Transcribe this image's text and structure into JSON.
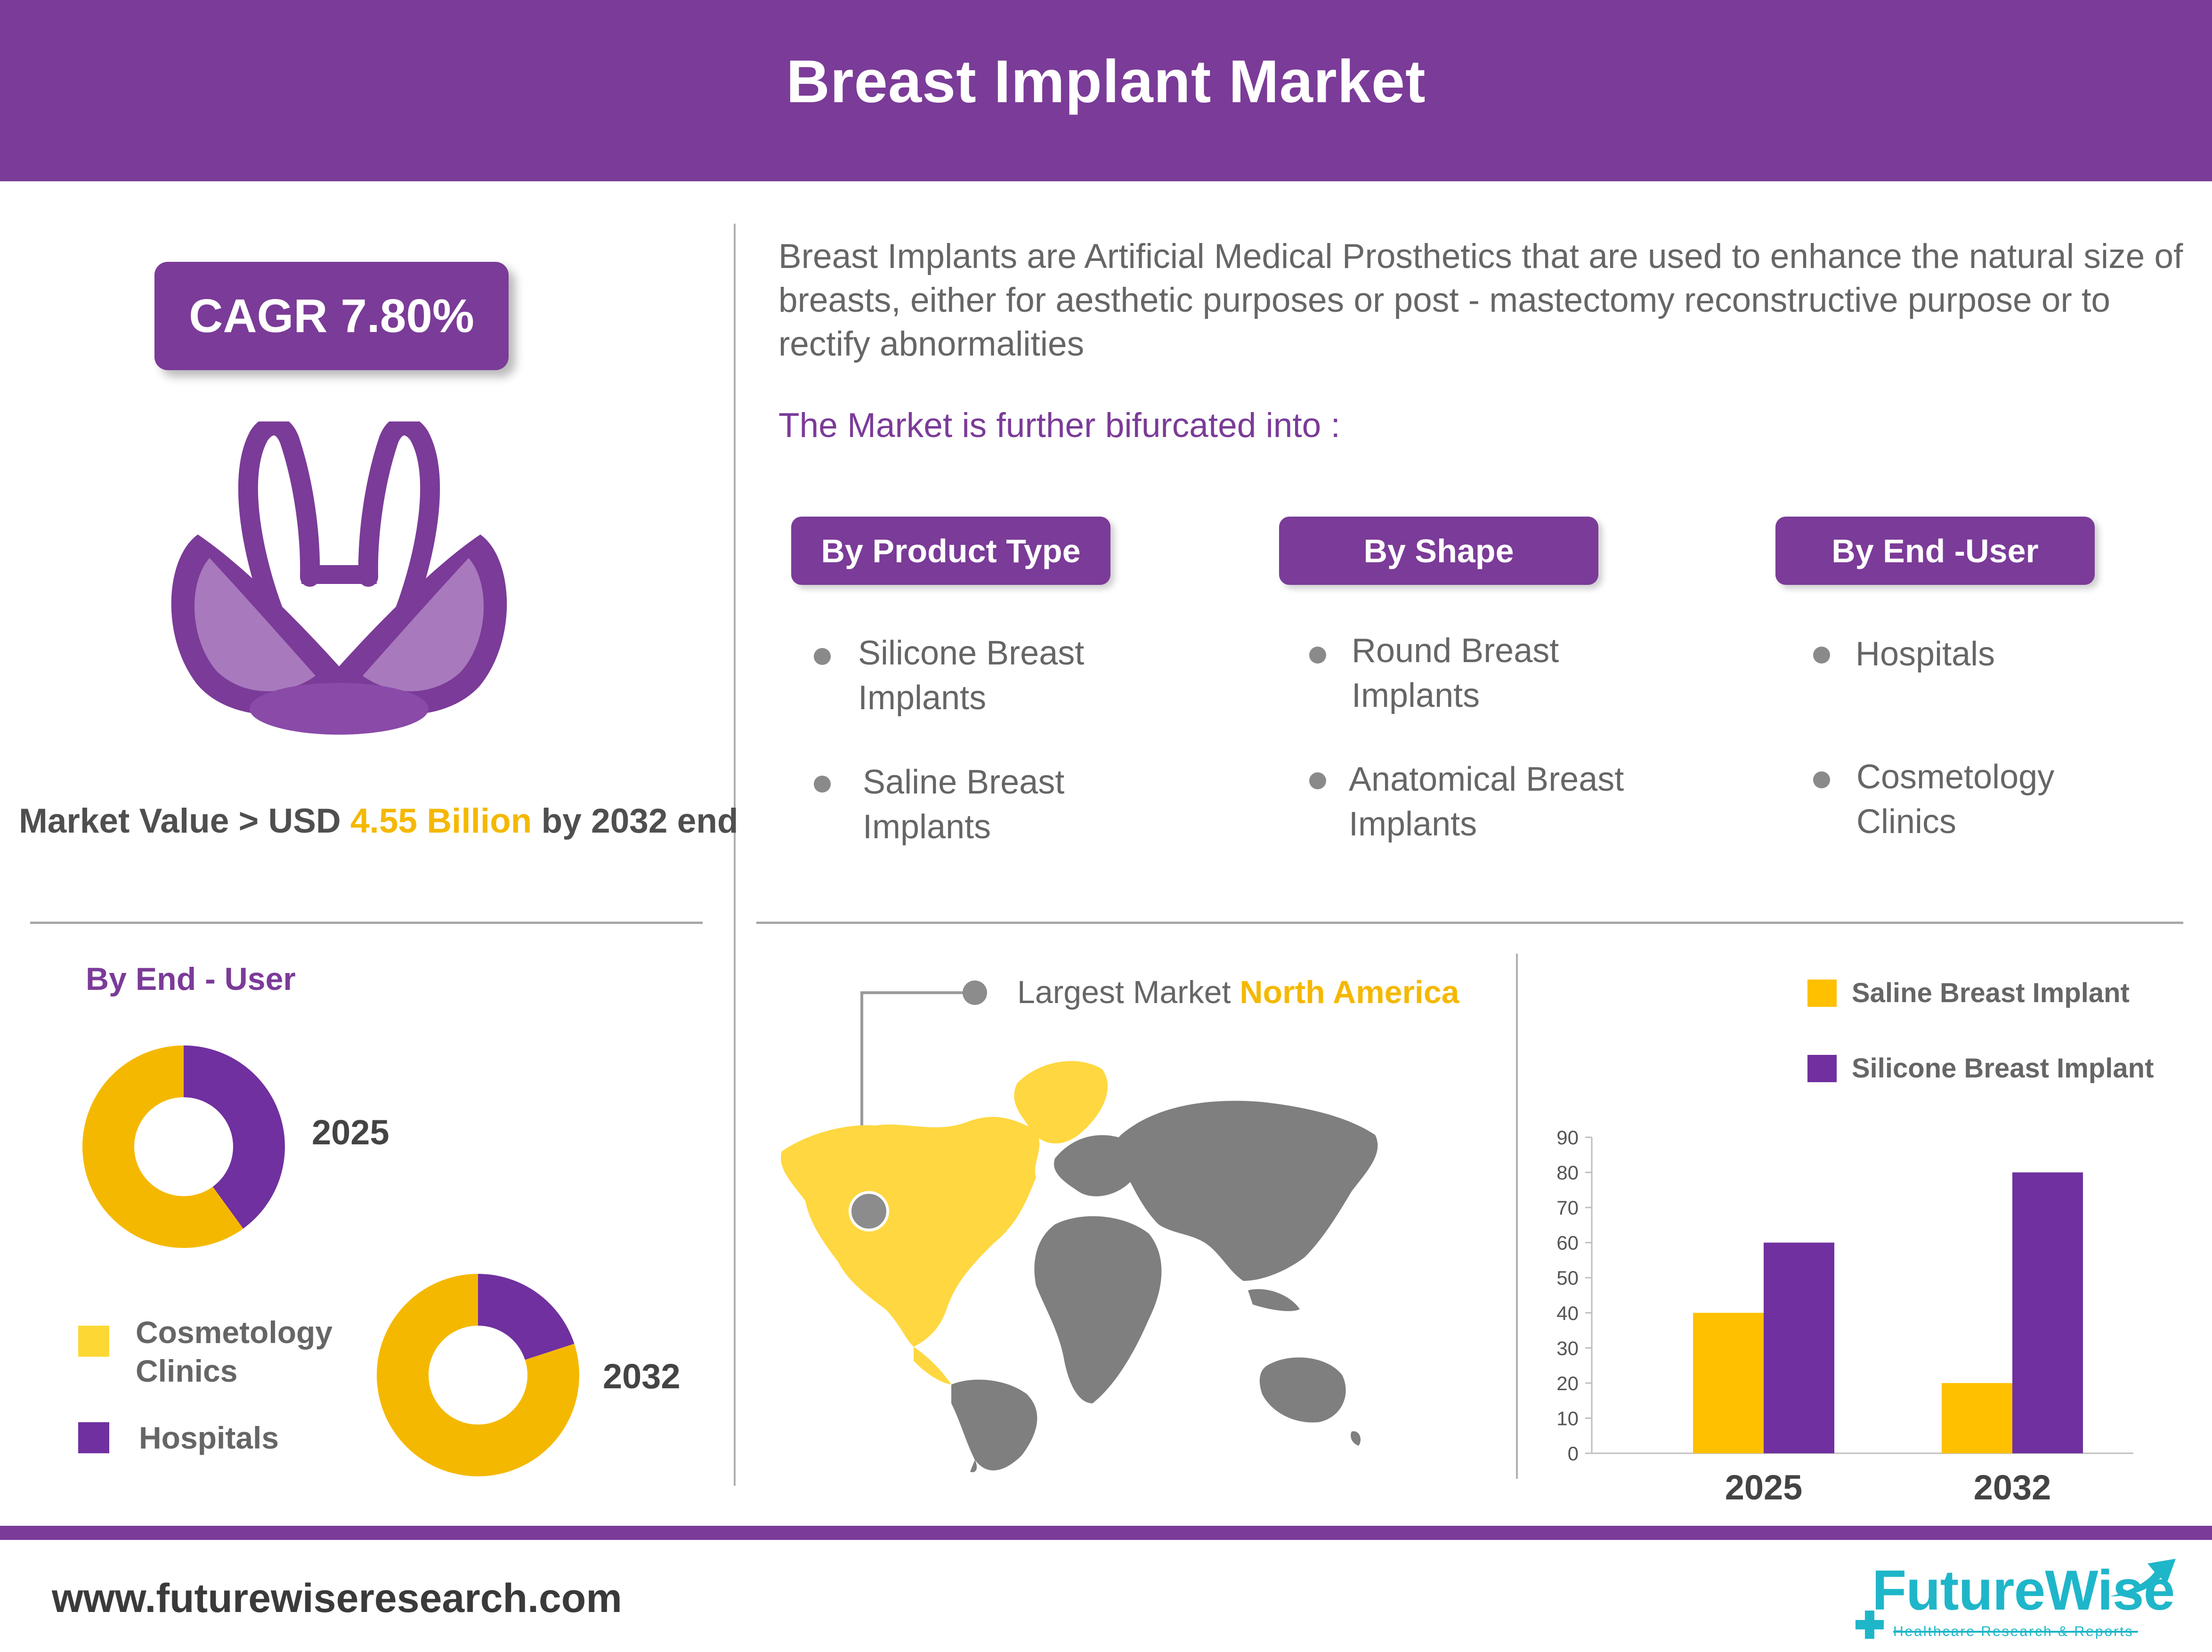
{
  "header": {
    "title": "Breast Implant Market"
  },
  "cagr": {
    "label": "CAGR 7.80%"
  },
  "market_value": {
    "prefix": "Market Value > USD ",
    "amount": "4.55 Billion",
    "suffix": " by 2032 end"
  },
  "description": "Breast Implants are Artificial Medical Prosthetics that are used to enhance the natural size of breasts, either for aesthetic purposes or post - mastectomy reconstructive purpose or to rectify abnormalities",
  "bifurcated": "The Market is further bifurcated into :",
  "segments": [
    {
      "title": "By Product Type",
      "items": [
        [
          "Silicone Breast",
          "Implants"
        ],
        [
          "Saline Breast",
          "Implants"
        ]
      ]
    },
    {
      "title": "By Shape",
      "items": [
        [
          "Round Breast",
          "Implants"
        ],
        [
          "Anatomical Breast",
          "Implants"
        ]
      ]
    },
    {
      "title": "By End -User",
      "items": [
        [
          "Hospitals"
        ],
        [
          "Cosmetology",
          "Clinics"
        ]
      ]
    }
  ],
  "enduser_section": {
    "title": "By End - User"
  },
  "largest_market": {
    "prefix": "Largest Market ",
    "region": "North America"
  },
  "colors": {
    "purple": "#7b3b98",
    "bar_purple": "#7030a0",
    "yellow": "#ffc000",
    "donut_yellow": "#f5b800",
    "legend_yellow": "#fdd835",
    "map_gray": "#7f7f7f",
    "map_yellow": "#ffd740"
  },
  "chart_data": [
    {
      "type": "pie",
      "subtype": "donut",
      "title": "2025",
      "labels": [
        "Hospitals",
        "Cosmetology Clinics"
      ],
      "values": [
        40,
        60
      ],
      "legend": [
        [
          "Cosmetology",
          "Clinics"
        ],
        [
          "Hospitals"
        ]
      ]
    },
    {
      "type": "pie",
      "subtype": "donut",
      "title": "2032",
      "labels": [
        "Hospitals",
        "Cosmetology Clinics"
      ],
      "values": [
        20,
        80
      ]
    },
    {
      "type": "bar",
      "categories": [
        "2025",
        "2032"
      ],
      "series": [
        {
          "name": "Saline Breast Implant",
          "values": [
            40,
            20
          ]
        },
        {
          "name": "Silicone Breast Implant",
          "values": [
            60,
            80
          ]
        }
      ],
      "ylim": [
        0,
        90
      ],
      "yticks": [
        0,
        10,
        20,
        30,
        40,
        50,
        60,
        70,
        80,
        90
      ],
      "legend_position": "top-right",
      "grid": false
    }
  ],
  "footer": {
    "url": "www.futurewiseresearch.com",
    "logo_name": "FutureWise",
    "logo_tagline": "Healthcare Research & Reports"
  }
}
